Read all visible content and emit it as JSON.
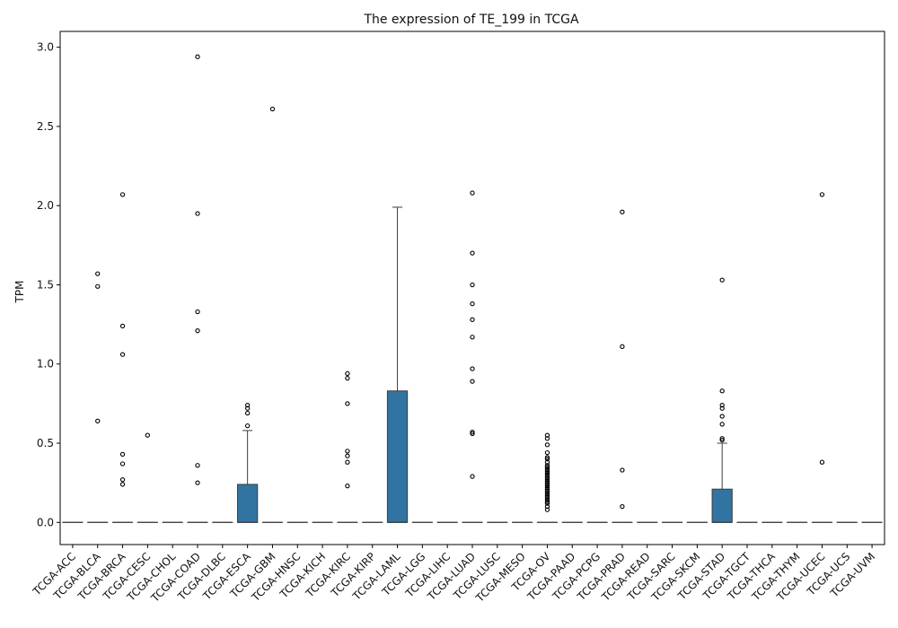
{
  "chart_data": {
    "type": "box",
    "title": "The expression of TE_199 in TCGA",
    "xlabel": "",
    "ylabel": "TPM",
    "ylim": [
      -0.14,
      3.1
    ],
    "yticks": [
      0.0,
      0.5,
      1.0,
      1.5,
      2.0,
      2.5,
      3.0
    ],
    "ytick_labels": [
      "0.0",
      "0.5",
      "1.0",
      "1.5",
      "2.0",
      "2.5",
      "3.0"
    ],
    "grid": false,
    "legend": "none",
    "colors": {
      "box_fill": "#3274a1",
      "box_edge": "#3d3d3d",
      "outlier": "#000000",
      "axis": "#000000"
    },
    "categories": [
      "TCGA-ACC",
      "TCGA-BLCA",
      "TCGA-BRCA",
      "TCGA-CESC",
      "TCGA-CHOL",
      "TCGA-COAD",
      "TCGA-DLBC",
      "TCGA-ESCA",
      "TCGA-GBM",
      "TCGA-HNSC",
      "TCGA-KICH",
      "TCGA-KIRC",
      "TCGA-KIRP",
      "TCGA-LAML",
      "TCGA-LGG",
      "TCGA-LIHC",
      "TCGA-LUAD",
      "TCGA-LUSC",
      "TCGA-MESO",
      "TCGA-OV",
      "TCGA-PAAD",
      "TCGA-PCPG",
      "TCGA-PRAD",
      "TCGA-READ",
      "TCGA-SARC",
      "TCGA-SKCM",
      "TCGA-STAD",
      "TCGA-TGCT",
      "TCGA-THCA",
      "TCGA-THYM",
      "TCGA-UCEC",
      "TCGA-UCS",
      "TCGA-UVM"
    ],
    "boxes": [
      {
        "q1": 0,
        "median": 0,
        "q3": 0,
        "whislo": 0,
        "whishi": 0,
        "fliers": []
      },
      {
        "q1": 0,
        "median": 0,
        "q3": 0,
        "whislo": 0,
        "whishi": 0,
        "fliers": [
          1.57,
          1.49,
          0.64
        ]
      },
      {
        "q1": 0,
        "median": 0,
        "q3": 0,
        "whislo": 0,
        "whishi": 0,
        "fliers": [
          2.07,
          1.24,
          1.06,
          0.43,
          0.37,
          0.27,
          0.24
        ]
      },
      {
        "q1": 0,
        "median": 0,
        "q3": 0,
        "whislo": 0,
        "whishi": 0,
        "fliers": [
          0.55
        ]
      },
      {
        "q1": 0,
        "median": 0,
        "q3": 0,
        "whislo": 0,
        "whishi": 0,
        "fliers": []
      },
      {
        "q1": 0,
        "median": 0,
        "q3": 0,
        "whislo": 0,
        "whishi": 0,
        "fliers": [
          2.94,
          1.95,
          1.33,
          1.21,
          0.36,
          0.25
        ]
      },
      {
        "q1": 0,
        "median": 0,
        "q3": 0,
        "whislo": 0,
        "whishi": 0,
        "fliers": []
      },
      {
        "q1": 0,
        "median": 0,
        "q3": 0.24,
        "whislo": 0,
        "whishi": 0.58,
        "fliers": [
          0.74,
          0.72,
          0.69,
          0.61
        ]
      },
      {
        "q1": 0,
        "median": 0,
        "q3": 0,
        "whislo": 0,
        "whishi": 0,
        "fliers": [
          2.61
        ]
      },
      {
        "q1": 0,
        "median": 0,
        "q3": 0,
        "whislo": 0,
        "whishi": 0,
        "fliers": []
      },
      {
        "q1": 0,
        "median": 0,
        "q3": 0,
        "whislo": 0,
        "whishi": 0,
        "fliers": []
      },
      {
        "q1": 0,
        "median": 0,
        "q3": 0,
        "whislo": 0,
        "whishi": 0,
        "fliers": [
          0.94,
          0.91,
          0.75,
          0.45,
          0.42,
          0.38,
          0.23
        ]
      },
      {
        "q1": 0,
        "median": 0,
        "q3": 0,
        "whislo": 0,
        "whishi": 0,
        "fliers": []
      },
      {
        "q1": 0,
        "median": 0,
        "q3": 0.83,
        "whislo": 0,
        "whishi": 1.99,
        "fliers": []
      },
      {
        "q1": 0,
        "median": 0,
        "q3": 0,
        "whislo": 0,
        "whishi": 0,
        "fliers": []
      },
      {
        "q1": 0,
        "median": 0,
        "q3": 0,
        "whislo": 0,
        "whishi": 0,
        "fliers": []
      },
      {
        "q1": 0,
        "median": 0,
        "q3": 0,
        "whislo": 0,
        "whishi": 0,
        "fliers": [
          2.08,
          1.7,
          1.5,
          1.38,
          1.28,
          1.17,
          0.97,
          0.89,
          0.57,
          0.56,
          0.29
        ]
      },
      {
        "q1": 0,
        "median": 0,
        "q3": 0,
        "whislo": 0,
        "whishi": 0,
        "fliers": []
      },
      {
        "q1": 0,
        "median": 0,
        "q3": 0,
        "whislo": 0,
        "whishi": 0,
        "fliers": []
      },
      {
        "q1": 0,
        "median": 0,
        "q3": 0,
        "whislo": 0,
        "whishi": 0,
        "fliers": [
          0.55,
          0.53,
          0.49,
          0.44,
          0.41,
          0.4,
          0.38,
          0.36,
          0.35,
          0.34,
          0.33,
          0.32,
          0.31,
          0.3,
          0.29,
          0.28,
          0.27,
          0.26,
          0.25,
          0.24,
          0.23,
          0.22,
          0.21,
          0.2,
          0.19,
          0.18,
          0.17,
          0.16,
          0.15,
          0.14,
          0.13,
          0.12,
          0.1,
          0.08
        ]
      },
      {
        "q1": 0,
        "median": 0,
        "q3": 0,
        "whislo": 0,
        "whishi": 0,
        "fliers": []
      },
      {
        "q1": 0,
        "median": 0,
        "q3": 0,
        "whislo": 0,
        "whishi": 0,
        "fliers": []
      },
      {
        "q1": 0,
        "median": 0,
        "q3": 0,
        "whislo": 0,
        "whishi": 0,
        "fliers": [
          1.96,
          1.11,
          0.33,
          0.1
        ]
      },
      {
        "q1": 0,
        "median": 0,
        "q3": 0,
        "whislo": 0,
        "whishi": 0,
        "fliers": []
      },
      {
        "q1": 0,
        "median": 0,
        "q3": 0,
        "whislo": 0,
        "whishi": 0,
        "fliers": []
      },
      {
        "q1": 0,
        "median": 0,
        "q3": 0,
        "whislo": 0,
        "whishi": 0,
        "fliers": []
      },
      {
        "q1": 0,
        "median": 0,
        "q3": 0.21,
        "whislo": 0,
        "whishi": 0.5,
        "fliers": [
          1.53,
          0.83,
          0.74,
          0.72,
          0.67,
          0.62,
          0.53,
          0.52
        ]
      },
      {
        "q1": 0,
        "median": 0,
        "q3": 0,
        "whislo": 0,
        "whishi": 0,
        "fliers": []
      },
      {
        "q1": 0,
        "median": 0,
        "q3": 0,
        "whislo": 0,
        "whishi": 0,
        "fliers": []
      },
      {
        "q1": 0,
        "median": 0,
        "q3": 0,
        "whislo": 0,
        "whishi": 0,
        "fliers": []
      },
      {
        "q1": 0,
        "median": 0,
        "q3": 0,
        "whislo": 0,
        "whishi": 0,
        "fliers": [
          2.07,
          0.38
        ]
      },
      {
        "q1": 0,
        "median": 0,
        "q3": 0,
        "whislo": 0,
        "whishi": 0,
        "fliers": []
      },
      {
        "q1": 0,
        "median": 0,
        "q3": 0,
        "whislo": 0,
        "whishi": 0,
        "fliers": []
      }
    ]
  }
}
